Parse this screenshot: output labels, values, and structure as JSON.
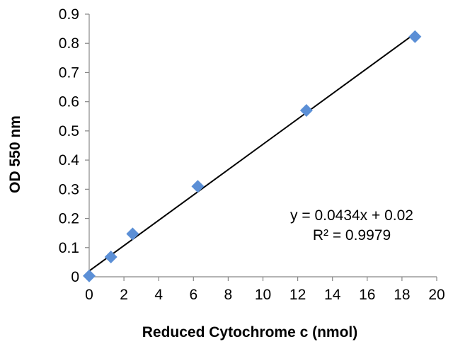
{
  "chart_data": {
    "type": "scatter",
    "title": "",
    "xlabel": "Reduced Cytochrome c (nmol)",
    "ylabel": "OD 550 nm",
    "xlim": [
      0,
      20
    ],
    "ylim": [
      0,
      0.9
    ],
    "x_ticks": [
      "0",
      "2",
      "4",
      "6",
      "8",
      "10",
      "12",
      "14",
      "16",
      "18",
      "20"
    ],
    "y_ticks": [
      "0",
      "0.1",
      "0.2",
      "0.3",
      "0.4",
      "0.5",
      "0.6",
      "0.7",
      "0.8",
      "0.9"
    ],
    "grid": false,
    "legend": "none",
    "marker": "diamond",
    "marker_color": "#5b8fd6",
    "line_color": "#000000",
    "series": [
      {
        "x": [
          0,
          1.25,
          2.5,
          6.25,
          12.5,
          18.75
        ],
        "y": [
          0.003,
          0.068,
          0.147,
          0.31,
          0.57,
          0.823
        ]
      }
    ],
    "trendline": {
      "slope": 0.0434,
      "intercept": 0.02,
      "equation": "y = 0.0434x + 0.02",
      "r_squared": "R² = 0.9979"
    }
  }
}
